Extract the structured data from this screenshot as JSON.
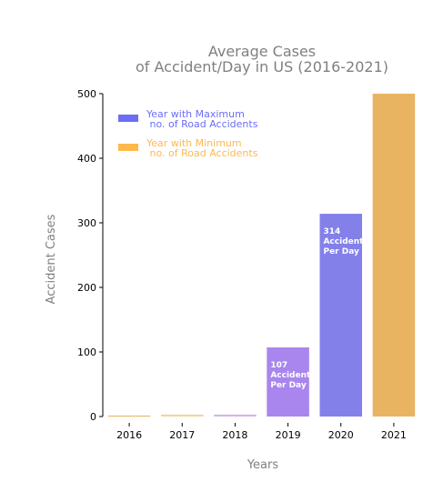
{
  "chart_data": {
    "type": "bar",
    "title_lines": [
      "Average Cases",
      "of Accident/Day in US (2016-2021)"
    ],
    "xlabel": "Years",
    "ylabel": "Accident Cases",
    "categories": [
      "2016",
      "2017",
      "2018",
      "2019",
      "2020",
      "2021"
    ],
    "values": [
      1,
      3,
      3,
      107,
      314,
      500
    ],
    "bar_colors": [
      "#e8b25e",
      "#f0d59e",
      "#d0b6e4",
      "#a886ee",
      "#8380ea",
      "#e8b462"
    ],
    "ylim": [
      0,
      500
    ],
    "yticks": [
      0,
      100,
      200,
      300,
      400,
      500
    ],
    "grid": false,
    "bar_labels": [
      {
        "index": 3,
        "lines": [
          "107",
          "Accidents",
          "Per Day"
        ]
      },
      {
        "index": 4,
        "lines": [
          "314",
          "Accidents",
          "Per Day"
        ]
      }
    ],
    "legend": {
      "position": "top-left",
      "entries": [
        {
          "lines": [
            "Year with Maximum",
            " no. of Road Accidents"
          ],
          "color": "#6b6ef5"
        },
        {
          "lines": [
            "Year with Minimum",
            " no. of Road Accidents"
          ],
          "color": "#ffb84d"
        }
      ]
    }
  }
}
